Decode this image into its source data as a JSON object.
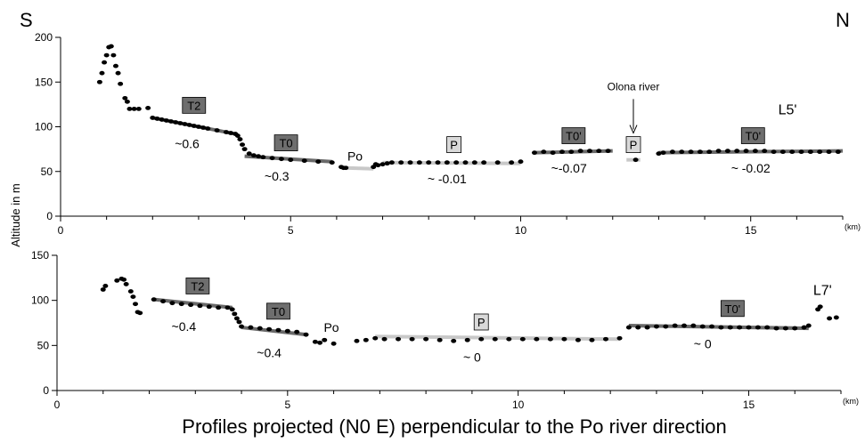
{
  "chart_data": {
    "type": "scatter",
    "direction_left": "S",
    "direction_right": "N",
    "ylabel": "Altitude in m",
    "xlabel": "Profiles projected (N0 E) perpendicular to the Po river direction",
    "x_unit": "(km)",
    "colors": {
      "points": "#000000",
      "dark_box": "#6e6e6e",
      "light_box": "#d9d9d9",
      "dark_segment": "#6a6a6a",
      "light_segment": "#c8c8c8"
    },
    "panels": [
      {
        "label": "L5'",
        "xlim": [
          0,
          17
        ],
        "ylim": [
          0,
          200
        ],
        "xticks": [
          0,
          5,
          10,
          15
        ],
        "yticks": [
          0,
          50,
          100,
          150,
          200
        ],
        "points": [
          [
            0.85,
            150
          ],
          [
            0.9,
            160
          ],
          [
            0.95,
            172
          ],
          [
            1.0,
            180
          ],
          [
            1.05,
            189
          ],
          [
            1.1,
            190
          ],
          [
            1.15,
            180
          ],
          [
            1.2,
            168
          ],
          [
            1.25,
            160
          ],
          [
            1.3,
            148
          ],
          [
            1.4,
            132
          ],
          [
            1.45,
            128
          ],
          [
            1.5,
            120
          ],
          [
            1.6,
            120
          ],
          [
            1.7,
            120
          ],
          [
            1.9,
            121
          ],
          [
            2.0,
            110
          ],
          [
            2.1,
            109
          ],
          [
            2.2,
            108
          ],
          [
            2.3,
            107
          ],
          [
            2.4,
            106
          ],
          [
            2.5,
            105
          ],
          [
            2.6,
            104
          ],
          [
            2.7,
            103
          ],
          [
            2.8,
            102
          ],
          [
            2.9,
            101
          ],
          [
            3.0,
            100
          ],
          [
            3.1,
            99
          ],
          [
            3.2,
            98
          ],
          [
            3.4,
            96
          ],
          [
            3.6,
            94
          ],
          [
            3.7,
            93
          ],
          [
            3.8,
            92
          ],
          [
            3.85,
            90
          ],
          [
            3.9,
            86
          ],
          [
            3.95,
            80
          ],
          [
            4.0,
            75
          ],
          [
            4.1,
            70
          ],
          [
            4.2,
            68
          ],
          [
            4.3,
            67
          ],
          [
            4.4,
            66
          ],
          [
            4.6,
            65
          ],
          [
            4.8,
            64
          ],
          [
            5.0,
            63
          ],
          [
            5.3,
            62
          ],
          [
            5.6,
            61
          ],
          [
            5.9,
            60
          ],
          [
            6.1,
            55
          ],
          [
            6.15,
            54
          ],
          [
            6.2,
            54
          ],
          [
            6.8,
            55
          ],
          [
            6.85,
            58
          ],
          [
            6.9,
            57
          ],
          [
            7.0,
            58
          ],
          [
            7.1,
            59
          ],
          [
            7.2,
            60
          ],
          [
            7.4,
            60
          ],
          [
            7.6,
            60
          ],
          [
            7.8,
            60
          ],
          [
            8.0,
            60
          ],
          [
            8.2,
            60
          ],
          [
            8.4,
            60
          ],
          [
            8.6,
            60
          ],
          [
            8.8,
            60
          ],
          [
            9.0,
            60
          ],
          [
            9.2,
            60
          ],
          [
            9.5,
            60
          ],
          [
            9.8,
            60
          ],
          [
            10.0,
            61
          ],
          [
            10.3,
            71
          ],
          [
            10.5,
            72
          ],
          [
            10.7,
            71
          ],
          [
            10.9,
            72
          ],
          [
            11.1,
            72
          ],
          [
            11.3,
            73
          ],
          [
            11.5,
            73
          ],
          [
            11.7,
            73
          ],
          [
            11.9,
            73
          ],
          [
            12.5,
            63
          ],
          [
            13.0,
            70
          ],
          [
            13.1,
            71
          ],
          [
            13.3,
            72
          ],
          [
            13.5,
            72
          ],
          [
            13.7,
            72
          ],
          [
            13.9,
            72
          ],
          [
            14.1,
            72
          ],
          [
            14.3,
            73
          ],
          [
            14.5,
            73
          ],
          [
            14.7,
            73
          ],
          [
            14.9,
            73
          ],
          [
            15.1,
            73
          ],
          [
            15.3,
            73
          ],
          [
            15.5,
            72
          ],
          [
            15.7,
            72
          ],
          [
            15.9,
            72
          ],
          [
            16.1,
            72
          ],
          [
            16.3,
            72
          ],
          [
            16.5,
            72
          ],
          [
            16.7,
            72
          ],
          [
            16.9,
            72
          ]
        ],
        "segments": [
          {
            "x": [
              2.0,
              3.8
            ],
            "y": [
              110,
              92
            ],
            "shade": "dark"
          },
          {
            "x": [
              4.0,
              5.9
            ],
            "y": [
              67,
              61
            ],
            "shade": "dark"
          },
          {
            "x": [
              6.2,
              6.8
            ],
            "y": [
              54,
              53
            ],
            "shade": "light"
          },
          {
            "x": [
              7.0,
              10.0
            ],
            "y": [
              60,
              59
            ],
            "shade": "light"
          },
          {
            "x": [
              10.3,
              12.0
            ],
            "y": [
              71,
              73
            ],
            "shade": "dark"
          },
          {
            "x": [
              12.3,
              12.6
            ],
            "y": [
              63,
              63
            ],
            "shade": "light"
          },
          {
            "x": [
              13.0,
              17.0
            ],
            "y": [
              71,
              73
            ],
            "shade": "dark"
          }
        ],
        "unit_labels": [
          {
            "text": "T2",
            "x": 2.9,
            "y": 124,
            "shade": "dark"
          },
          {
            "text": "T0",
            "x": 4.9,
            "y": 82,
            "shade": "dark"
          },
          {
            "text": "P",
            "x": 8.55,
            "y": 80,
            "shade": "light"
          },
          {
            "text": "T0'",
            "x": 11.15,
            "y": 90,
            "shade": "dark"
          },
          {
            "text": "P",
            "x": 12.45,
            "y": 80,
            "shade": "light"
          },
          {
            "text": "T0'",
            "x": 15.05,
            "y": 90,
            "shade": "dark"
          }
        ],
        "annotations": [
          {
            "text": "~0.6",
            "x": 2.75,
            "y": 76
          },
          {
            "text": "~0.3",
            "x": 4.7,
            "y": 40
          },
          {
            "text": "Po",
            "x": 6.4,
            "y": 62
          },
          {
            "text": "~ -0.01",
            "x": 8.4,
            "y": 37
          },
          {
            "text": "~-0.07",
            "x": 11.05,
            "y": 49
          },
          {
            "text": "~ -0.02",
            "x": 15.0,
            "y": 49
          }
        ],
        "river_label": {
          "text": "Olona river",
          "x": 12.45,
          "y": 141,
          "arrow_from": 131,
          "arrow_to": 93
        },
        "panel_label_pos": {
          "x": 15.8,
          "y": 114
        }
      },
      {
        "label": "L7'",
        "xlim": [
          0,
          17
        ],
        "ylim": [
          0,
          150
        ],
        "xticks": [
          0,
          5,
          10,
          15
        ],
        "yticks": [
          0,
          50,
          100,
          150
        ],
        "points": [
          [
            1.0,
            112
          ],
          [
            1.05,
            116
          ],
          [
            1.3,
            122
          ],
          [
            1.4,
            124
          ],
          [
            1.45,
            123
          ],
          [
            1.5,
            118
          ],
          [
            1.6,
            110
          ],
          [
            1.65,
            104
          ],
          [
            1.7,
            96
          ],
          [
            1.75,
            87
          ],
          [
            1.8,
            86
          ],
          [
            2.1,
            101
          ],
          [
            2.3,
            99
          ],
          [
            2.5,
            97
          ],
          [
            2.7,
            96
          ],
          [
            2.9,
            95
          ],
          [
            3.1,
            94
          ],
          [
            3.3,
            93
          ],
          [
            3.5,
            92
          ],
          [
            3.7,
            92
          ],
          [
            3.8,
            90
          ],
          [
            3.85,
            85
          ],
          [
            3.9,
            80
          ],
          [
            3.95,
            76
          ],
          [
            4.0,
            71
          ],
          [
            4.2,
            70
          ],
          [
            4.4,
            69
          ],
          [
            4.6,
            68
          ],
          [
            4.8,
            67
          ],
          [
            5.0,
            66
          ],
          [
            5.2,
            65
          ],
          [
            5.4,
            62
          ],
          [
            5.6,
            54
          ],
          [
            5.7,
            53
          ],
          [
            5.8,
            56
          ],
          [
            6.0,
            52
          ],
          [
            6.5,
            55
          ],
          [
            6.7,
            56
          ],
          [
            6.9,
            58
          ],
          [
            7.1,
            57
          ],
          [
            7.4,
            57
          ],
          [
            7.7,
            57
          ],
          [
            8.0,
            57
          ],
          [
            8.3,
            56
          ],
          [
            8.6,
            55
          ],
          [
            8.9,
            56
          ],
          [
            9.2,
            57
          ],
          [
            9.5,
            57
          ],
          [
            9.8,
            57
          ],
          [
            10.1,
            57
          ],
          [
            10.4,
            57
          ],
          [
            10.7,
            57
          ],
          [
            11.0,
            57
          ],
          [
            11.3,
            56
          ],
          [
            11.6,
            56
          ],
          [
            11.9,
            57
          ],
          [
            12.2,
            58
          ],
          [
            12.4,
            70
          ],
          [
            12.6,
            70
          ],
          [
            12.8,
            70
          ],
          [
            13.0,
            71
          ],
          [
            13.2,
            71
          ],
          [
            13.4,
            72
          ],
          [
            13.6,
            72
          ],
          [
            13.8,
            72
          ],
          [
            14.0,
            71
          ],
          [
            14.2,
            71
          ],
          [
            14.4,
            70
          ],
          [
            14.6,
            70
          ],
          [
            14.8,
            70
          ],
          [
            15.0,
            70
          ],
          [
            15.2,
            70
          ],
          [
            15.4,
            70
          ],
          [
            15.6,
            69
          ],
          [
            15.8,
            69
          ],
          [
            16.0,
            69
          ],
          [
            16.2,
            70
          ],
          [
            16.3,
            72
          ],
          [
            16.5,
            90
          ],
          [
            16.55,
            93
          ],
          [
            16.75,
            80
          ],
          [
            16.9,
            81
          ]
        ],
        "segments": [
          {
            "x": [
              2.1,
              3.8
            ],
            "y": [
              101,
              92
            ],
            "shade": "dark"
          },
          {
            "x": [
              4.0,
              5.4
            ],
            "y": [
              70,
              62
            ],
            "shade": "dark"
          },
          {
            "x": [
              6.9,
              12.2
            ],
            "y": [
              60,
              57
            ],
            "shade": "light"
          },
          {
            "x": [
              12.4,
              16.3
            ],
            "y": [
              72,
              69
            ],
            "shade": "dark"
          }
        ],
        "unit_labels": [
          {
            "text": "T2",
            "x": 3.05,
            "y": 116,
            "shade": "dark"
          },
          {
            "text": "T0",
            "x": 4.8,
            "y": 88,
            "shade": "dark"
          },
          {
            "text": "P",
            "x": 9.2,
            "y": 76,
            "shade": "light"
          },
          {
            "text": "T0'",
            "x": 14.65,
            "y": 91,
            "shade": "dark"
          }
        ],
        "annotations": [
          {
            "text": "~0.4",
            "x": 2.75,
            "y": 66
          },
          {
            "text": "~0.4",
            "x": 4.6,
            "y": 37
          },
          {
            "text": "Po",
            "x": 5.95,
            "y": 65
          },
          {
            "text": "~ 0",
            "x": 9.0,
            "y": 32
          },
          {
            "text": "~ 0",
            "x": 14.0,
            "y": 47
          }
        ],
        "panel_label_pos": {
          "x": 16.6,
          "y": 106
        }
      }
    ]
  }
}
